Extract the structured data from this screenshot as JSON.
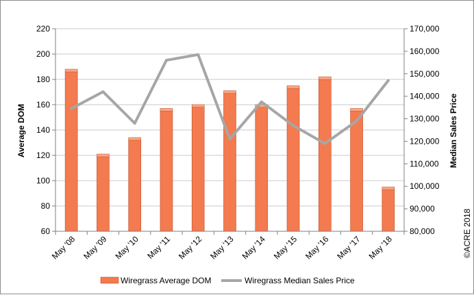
{
  "chart_data": {
    "type": "bar",
    "categories": [
      "May '08",
      "May '09",
      "May '10",
      "May '11",
      "May '12",
      "May '13",
      "May '14",
      "May '15",
      "May '16",
      "May '17",
      "May '18"
    ],
    "series": [
      {
        "name": "Wiregrass Average DOM",
        "type": "bar",
        "axis": "left",
        "color": "#f47a4f",
        "values": [
          187,
          120,
          133,
          156,
          159,
          170,
          159,
          174,
          181,
          156,
          94
        ]
      },
      {
        "name": "Wiregrass Median Sales Price",
        "type": "line",
        "axis": "right",
        "color": "#a6a6a6",
        "values": [
          134500,
          142000,
          128000,
          156000,
          158500,
          121000,
          137500,
          127000,
          119000,
          129000,
          147000
        ]
      }
    ],
    "ylabel": "Average DOM",
    "y2label": "Median Sales Price",
    "ylim": [
      60,
      220
    ],
    "yticks": [
      60,
      80,
      100,
      120,
      140,
      160,
      180,
      200,
      220
    ],
    "y2lim": [
      80000,
      170000
    ],
    "y2ticks": [
      "80,000",
      "90,000",
      "100,000",
      "110,000",
      "120,000",
      "130,000",
      "140,000",
      "150,000",
      "160,000",
      "170,000"
    ],
    "grid": true,
    "legend_position": "bottom",
    "watermark": "©ACRE 2018"
  }
}
